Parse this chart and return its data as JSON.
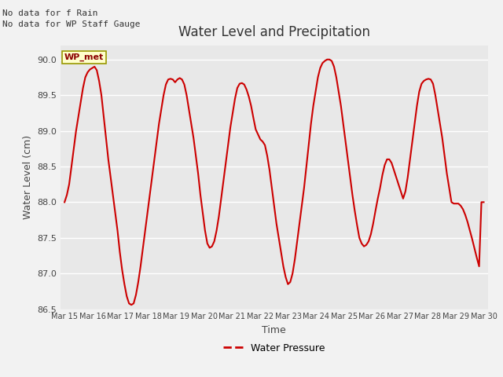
{
  "title": "Water Level and Precipitation",
  "xlabel": "Time",
  "ylabel": "Water Level (cm)",
  "ylim": [
    86.5,
    90.2
  ],
  "background_color": "#f2f2f2",
  "plot_bg_color": "#e8e8e8",
  "line_color": "#cc0000",
  "line_width": 1.5,
  "legend_label": "Water Pressure",
  "legend_line_color": "#cc0000",
  "annotation_text1": "No data for f Rain",
  "annotation_text2": "No data for WP Staff Gauge",
  "wp_met_label": "WP_met",
  "x_tick_labels": [
    "Mar 15",
    "Mar 16",
    "Mar 17",
    "Mar 18",
    "Mar 19",
    "Mar 20",
    "Mar 21",
    "Mar 22",
    "Mar 23",
    "Mar 24",
    "Mar 25",
    "Mar 26",
    "Mar 27",
    "Mar 28",
    "Mar 29",
    "Mar 30"
  ],
  "y_values": [
    88.0,
    88.1,
    88.25,
    88.5,
    88.75,
    89.0,
    89.2,
    89.4,
    89.6,
    89.75,
    89.82,
    89.86,
    89.88,
    89.9,
    89.85,
    89.7,
    89.5,
    89.2,
    88.9,
    88.6,
    88.35,
    88.1,
    87.85,
    87.6,
    87.3,
    87.05,
    86.85,
    86.68,
    86.58,
    86.56,
    86.58,
    86.7,
    86.88,
    87.1,
    87.35,
    87.6,
    87.85,
    88.1,
    88.35,
    88.6,
    88.85,
    89.1,
    89.3,
    89.5,
    89.65,
    89.72,
    89.73,
    89.72,
    89.68,
    89.72,
    89.74,
    89.72,
    89.65,
    89.5,
    89.3,
    89.1,
    88.9,
    88.65,
    88.4,
    88.1,
    87.85,
    87.6,
    87.42,
    87.36,
    87.38,
    87.45,
    87.6,
    87.8,
    88.05,
    88.3,
    88.55,
    88.8,
    89.05,
    89.25,
    89.45,
    89.6,
    89.66,
    89.67,
    89.65,
    89.58,
    89.48,
    89.35,
    89.18,
    89.02,
    88.95,
    88.88,
    88.85,
    88.8,
    88.65,
    88.45,
    88.2,
    87.95,
    87.7,
    87.5,
    87.3,
    87.1,
    86.95,
    86.85,
    86.88,
    87.0,
    87.2,
    87.45,
    87.7,
    87.95,
    88.2,
    88.5,
    88.8,
    89.1,
    89.35,
    89.55,
    89.75,
    89.88,
    89.95,
    89.98,
    90.0,
    90.0,
    89.98,
    89.9,
    89.75,
    89.55,
    89.35,
    89.1,
    88.85,
    88.6,
    88.35,
    88.1,
    87.88,
    87.68,
    87.5,
    87.42,
    87.38,
    87.4,
    87.45,
    87.55,
    87.7,
    87.88,
    88.05,
    88.2,
    88.38,
    88.52,
    88.6,
    88.6,
    88.55,
    88.45,
    88.35,
    88.25,
    88.15,
    88.05,
    88.15,
    88.35,
    88.6,
    88.85,
    89.1,
    89.35,
    89.55,
    89.66,
    89.7,
    89.72,
    89.73,
    89.72,
    89.66,
    89.5,
    89.3,
    89.1,
    88.9,
    88.65,
    88.4,
    88.2,
    88.0,
    87.98,
    87.98,
    87.98,
    87.95,
    87.9,
    87.82,
    87.72,
    87.6,
    87.48,
    87.35,
    87.22,
    87.1,
    88.0,
    88.0
  ],
  "n_points_per_day": 10,
  "n_days": 15
}
